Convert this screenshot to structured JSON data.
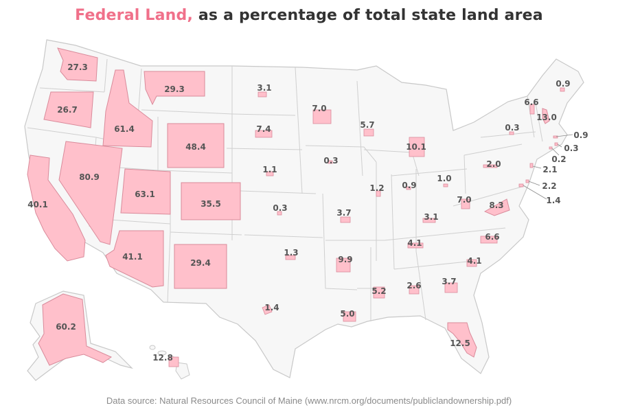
{
  "title": {
    "highlight": "Federal Land,",
    "rest": "as a percentage of total state land area"
  },
  "source": "Data source: Natural Resources Council of Maine (www.nrcm.org/documents/publiclandownership.pdf)",
  "colors": {
    "highlight": "#f0708a",
    "fill": "#ffc0cb",
    "fill_stroke": "#d98a9a",
    "state_bg": "#f7f7f7",
    "state_border": "#c8c8c8",
    "label": "#555555"
  },
  "states": [
    {
      "state": "WA",
      "value": 27.3,
      "label": "27.3"
    },
    {
      "state": "OR",
      "value": 26.7,
      "label": "26.7"
    },
    {
      "state": "CA",
      "value": 40.1,
      "label": "40.1"
    },
    {
      "state": "NV",
      "value": 80.9,
      "label": "80.9"
    },
    {
      "state": "ID",
      "value": 61.4,
      "label": "61.4"
    },
    {
      "state": "MT",
      "value": 29.3,
      "label": "29.3"
    },
    {
      "state": "WY",
      "value": 48.4,
      "label": "48.4"
    },
    {
      "state": "UT",
      "value": 63.1,
      "label": "63.1"
    },
    {
      "state": "CO",
      "value": 35.5,
      "label": "35.5"
    },
    {
      "state": "AZ",
      "value": 41.1,
      "label": "41.1"
    },
    {
      "state": "NM",
      "value": 29.4,
      "label": "29.4"
    },
    {
      "state": "AK",
      "value": 60.2,
      "label": "60.2"
    },
    {
      "state": "HI",
      "value": 12.8,
      "label": "12.8"
    },
    {
      "state": "ND",
      "value": 3.1,
      "label": "3.1"
    },
    {
      "state": "SD",
      "value": 7.4,
      "label": "7.4"
    },
    {
      "state": "NE",
      "value": 1.1,
      "label": "1.1"
    },
    {
      "state": "KS",
      "value": 0.3,
      "label": "0.3"
    },
    {
      "state": "OK",
      "value": 1.3,
      "label": "1.3"
    },
    {
      "state": "TX",
      "value": 1.4,
      "label": "1.4"
    },
    {
      "state": "MN",
      "value": 7.0,
      "label": "7.0"
    },
    {
      "state": "IA",
      "value": 0.3,
      "label": "0.3"
    },
    {
      "state": "MO",
      "value": 3.7,
      "label": "3.7"
    },
    {
      "state": "AR",
      "value": 9.9,
      "label": "9.9"
    },
    {
      "state": "LA",
      "value": 5.0,
      "label": "5.0"
    },
    {
      "state": "WI",
      "value": 5.7,
      "label": "5.7"
    },
    {
      "state": "IL",
      "value": 1.2,
      "label": "1.2"
    },
    {
      "state": "MI",
      "value": 10.1,
      "label": "10.1"
    },
    {
      "state": "IN",
      "value": 0.9,
      "label": "0.9"
    },
    {
      "state": "OH",
      "value": 1.0,
      "label": "1.0"
    },
    {
      "state": "KY",
      "value": 3.1,
      "label": "3.1"
    },
    {
      "state": "TN",
      "value": 4.1,
      "label": "4.1"
    },
    {
      "state": "MS",
      "value": 5.2,
      "label": "5.2"
    },
    {
      "state": "AL",
      "value": 2.6,
      "label": "2.6"
    },
    {
      "state": "GA",
      "value": 3.7,
      "label": "3.7"
    },
    {
      "state": "FL",
      "value": 12.5,
      "label": "12.5"
    },
    {
      "state": "SC",
      "value": 4.1,
      "label": "4.1"
    },
    {
      "state": "NC",
      "value": 6.6,
      "label": "6.6"
    },
    {
      "state": "VA",
      "value": 8.3,
      "label": "8.3"
    },
    {
      "state": "WV",
      "value": 7.0,
      "label": "7.0"
    },
    {
      "state": "PA",
      "value": 2.0,
      "label": "2.0"
    },
    {
      "state": "NY",
      "value": 0.3,
      "label": "0.3"
    },
    {
      "state": "VT",
      "value": 6.6,
      "label": "6.6"
    },
    {
      "state": "NH",
      "value": 13.0,
      "label": "13.0"
    },
    {
      "state": "ME",
      "value": 0.9,
      "label": "0.9"
    },
    {
      "state": "MA",
      "value": 0.9,
      "label": "0.9"
    },
    {
      "state": "RI",
      "value": 0.3,
      "label": "0.3"
    },
    {
      "state": "CT",
      "value": 0.2,
      "label": "0.2"
    },
    {
      "state": "NJ",
      "value": 2.1,
      "label": "2.1"
    },
    {
      "state": "DE",
      "value": 2.2,
      "label": "2.2"
    },
    {
      "state": "MD",
      "value": 1.4,
      "label": "1.4"
    }
  ]
}
